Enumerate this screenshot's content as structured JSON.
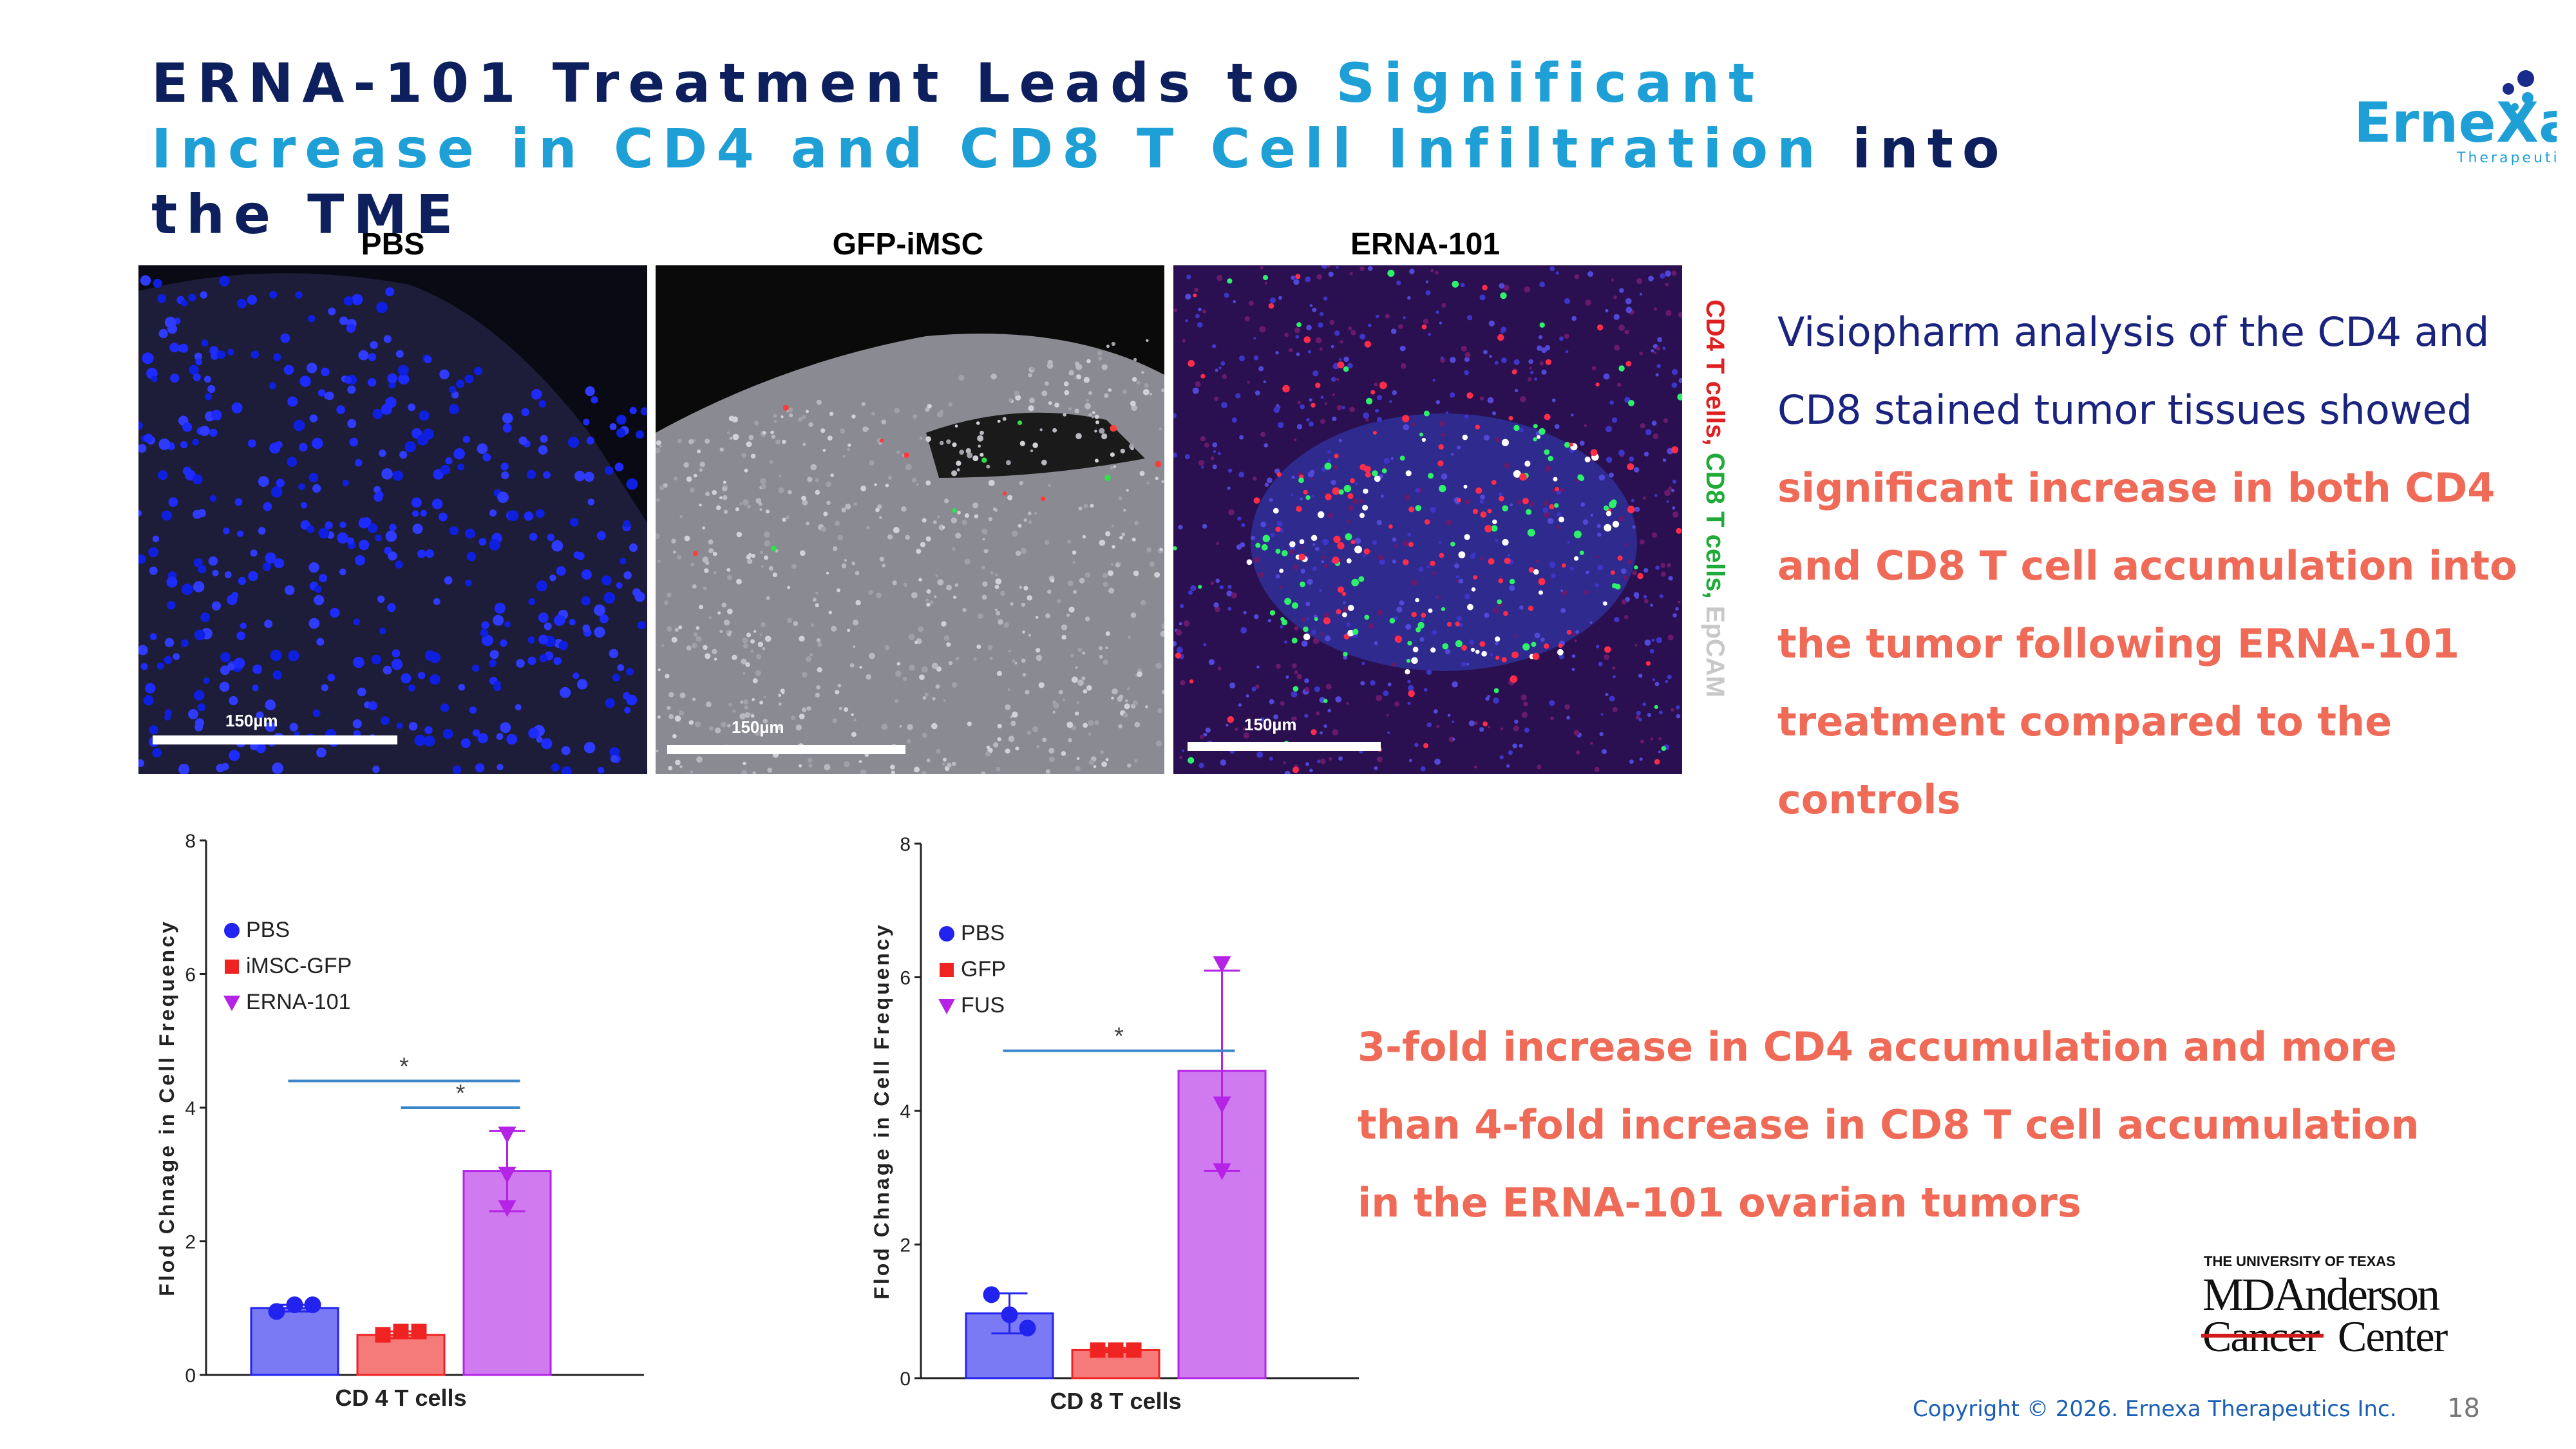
{
  "slide": {
    "title_part1": "ERNA-101 Treatment Leads to ",
    "title_part2": "Significant Increase in CD4 and CD8 T Cell Infiltration",
    "title_part3": " into the TME",
    "logo_text": "ErneXa",
    "logo_subtext": "Therapeutics",
    "panels": [
      {
        "label": "PBS",
        "scale_label": "150µm"
      },
      {
        "label": "GFP-iMSC",
        "scale_label": "150µm"
      },
      {
        "label": "ERNA-101",
        "scale_label": "150µm"
      }
    ],
    "stain_legend": {
      "cd4": "CD4 T cells,",
      "cd8": "CD8 T cells,",
      "epcam": "EpCAM"
    },
    "description_plain": "Visiopharm analysis of the CD4 and CD8 stained tumor tissues showed",
    "description_bold": "significant increase in both CD4 and CD8 T cell accumulation into the tumor following ERNA-101 treatment compared to the controls",
    "fold_text": "3-fold increase in CD4 accumulation and more than 4-fold increase in CD8 T cell accumulation in the ERNA-101 ovarian tumors",
    "institution": {
      "line1": "THE UNIVERSITY OF TEXAS",
      "line2": "MDAnderson",
      "line3": "Cancer",
      "line4": "Center"
    },
    "footer": "Copyright © 2026. Ernexa Therapeutics Inc.",
    "page_number": "18"
  },
  "colors": {
    "navy": "#0d1f5c",
    "accent_blue": "#1e9fd6",
    "salmon": "#ef6a57",
    "pbs": "#2323f0",
    "gfp": "#f02323",
    "erna": "#b423e6"
  },
  "chart_data": [
    {
      "type": "bar",
      "categories": [
        "CD 4 T cells"
      ],
      "xlabel": "CD 4 T cells",
      "ylabel": "Flod Chnage in Cell Frequency",
      "ylim": [
        0,
        8
      ],
      "yticks": [
        0,
        2,
        4,
        6,
        8
      ],
      "legend_position": "top-left",
      "series": [
        {
          "name": "PBS",
          "value": 1.0,
          "error": 0.05,
          "points": [
            0.95,
            1.05,
            1.05
          ],
          "color": "#2323f0",
          "fill": "#7a7af5",
          "marker": "circle"
        },
        {
          "name": "iMSC-GFP",
          "value": 0.6,
          "error": 0.05,
          "points": [
            0.6,
            0.65,
            0.65
          ],
          "color": "#f02323",
          "fill": "#f57a7a",
          "marker": "square"
        },
        {
          "name": "ERNA-101",
          "value": 3.05,
          "error": 0.6,
          "points": [
            3.6,
            3.0,
            2.5
          ],
          "color": "#b423e6",
          "fill": "#d07af0",
          "marker": "triangle-down"
        }
      ],
      "significance": [
        {
          "from": 0,
          "to": 2,
          "y": 4.4,
          "label": "*"
        },
        {
          "from": 1,
          "to": 2,
          "y": 4.0,
          "label": "*"
        }
      ]
    },
    {
      "type": "bar",
      "categories": [
        "CD 8 T cells"
      ],
      "xlabel": "CD 8 T cells",
      "ylabel": "Flod Chnage in Cell Frequency",
      "ylim": [
        0,
        8
      ],
      "yticks": [
        0,
        2,
        4,
        6,
        8
      ],
      "legend_position": "top-left",
      "series": [
        {
          "name": "PBS",
          "value": 0.97,
          "error": 0.3,
          "points": [
            1.25,
            0.95,
            0.75
          ],
          "color": "#2323f0",
          "fill": "#7a7af5",
          "marker": "circle"
        },
        {
          "name": "GFP",
          "value": 0.42,
          "error": 0.03,
          "points": [
            0.42,
            0.42,
            0.42
          ],
          "color": "#f02323",
          "fill": "#f57a7a",
          "marker": "square"
        },
        {
          "name": "FUS",
          "value": 4.6,
          "error": 1.5,
          "points": [
            6.2,
            4.1,
            3.1
          ],
          "color": "#b423e6",
          "fill": "#d07af0",
          "marker": "triangle-down"
        }
      ],
      "significance": [
        {
          "from": 0,
          "to": 2,
          "y": 4.9,
          "label": "*"
        }
      ]
    }
  ]
}
